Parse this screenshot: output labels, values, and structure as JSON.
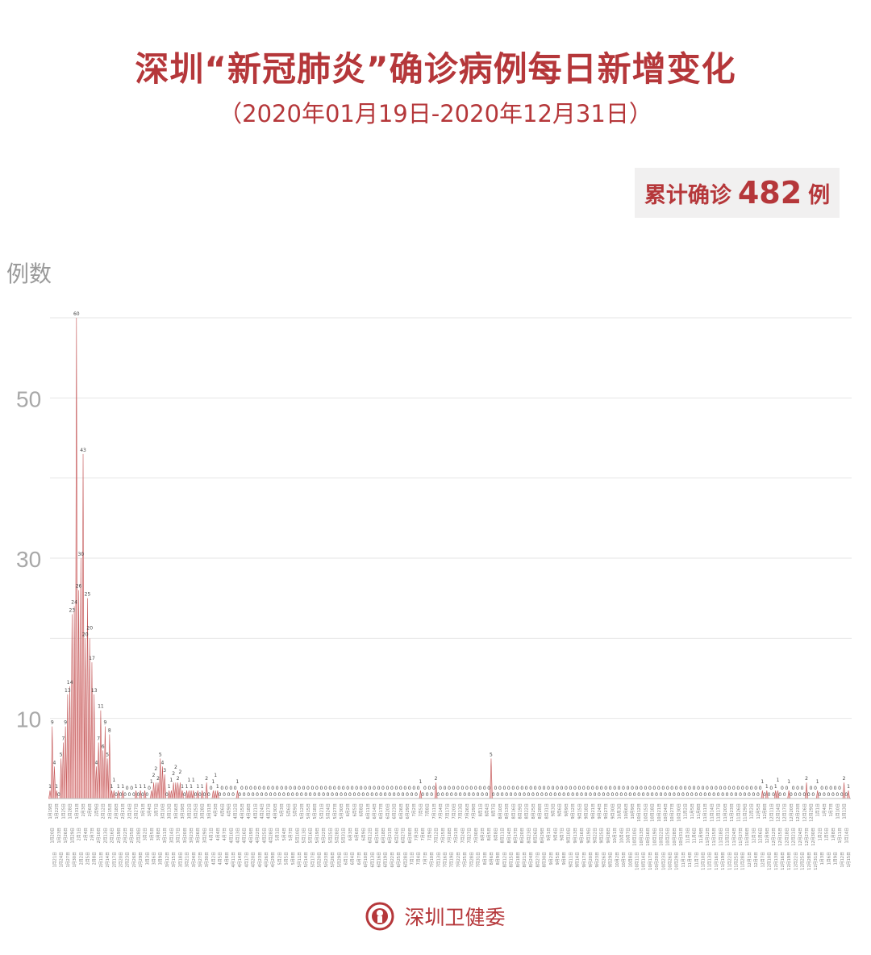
{
  "header": {
    "title": "深圳“新冠肺炎”确诊病例每日新增变化",
    "subtitle": "（2020年01月19日-2020年12月31日）",
    "total_label": "累计确诊",
    "total_value": "482",
    "total_unit": "例"
  },
  "footer": {
    "org": "深圳卫健委",
    "logo_icon": "health-commission-emblem-icon"
  },
  "colors": {
    "accent": "#b5373a",
    "fill": "#f0c2c2",
    "stroke": "#c4595a",
    "grid": "#e6e6e6"
  },
  "chart_data": {
    "type": "area",
    "title": "深圳“新冠肺炎”确诊病例每日新增变化",
    "ylabel": "例数",
    "xlabel": "",
    "x_start": "2020-01-19",
    "x_end": "2020-12-31",
    "ylim": [
      0,
      60
    ],
    "yticks": [
      10,
      30,
      50
    ],
    "gridlines": [
      10,
      20,
      30,
      40,
      50,
      60
    ],
    "grid": true,
    "values": [
      1,
      9,
      4,
      1,
      0,
      5,
      7,
      9,
      13,
      14,
      23,
      24,
      60,
      26,
      30,
      43,
      20,
      25,
      20,
      17,
      13,
      4,
      7,
      11,
      6,
      9,
      5,
      8,
      1,
      1,
      0,
      1,
      0,
      1,
      0,
      0,
      0,
      0,
      0,
      1,
      0,
      1,
      0,
      1,
      0,
      0,
      1,
      2,
      2,
      2,
      5,
      4,
      3,
      0,
      1,
      1,
      2,
      2,
      2,
      2,
      1,
      0,
      1,
      1,
      1,
      1,
      0,
      1,
      0,
      1,
      0,
      2,
      0,
      0,
      1,
      1,
      1,
      0,
      0,
      0,
      0,
      0,
      0,
      0,
      0,
      1,
      0,
      0,
      0,
      0,
      0,
      0,
      0,
      0,
      0,
      0,
      0,
      0,
      0,
      0,
      0,
      0,
      0,
      0,
      0,
      0,
      0,
      0,
      0,
      0,
      0,
      0,
      0,
      0,
      0,
      0,
      0,
      0,
      0,
      0,
      0,
      0,
      0,
      0,
      0,
      0,
      0,
      0,
      0,
      0,
      0,
      0,
      0,
      0,
      0,
      0,
      0,
      0,
      0,
      0,
      0,
      0,
      0,
      0,
      0,
      0,
      0,
      0,
      0,
      0,
      0,
      0,
      0,
      0,
      0,
      0,
      0,
      0,
      0,
      0,
      0,
      0,
      0,
      0,
      0,
      0,
      0,
      0,
      1,
      0,
      0,
      0,
      0,
      0,
      0,
      2,
      0,
      0,
      0,
      0,
      0,
      0,
      0,
      0,
      0,
      0,
      0,
      0,
      0,
      0,
      0,
      0,
      0,
      0,
      0,
      0,
      0,
      0,
      0,
      0,
      5,
      0,
      0,
      0,
      0,
      0,
      0,
      0,
      0,
      0,
      0,
      0,
      0,
      0,
      0,
      0,
      0,
      0,
      0,
      0,
      0,
      0,
      0,
      0,
      0,
      0,
      0,
      0,
      0,
      0,
      0,
      0,
      0,
      0,
      0,
      0,
      0,
      0,
      0,
      0,
      0,
      0,
      0,
      0,
      0,
      0,
      0,
      0,
      0,
      0,
      0,
      0,
      0,
      0,
      0,
      0,
      0,
      0,
      0,
      0,
      0,
      0,
      0,
      0,
      0,
      0,
      0,
      0,
      0,
      0,
      0,
      0,
      0,
      0,
      0,
      0,
      0,
      0,
      0,
      0,
      0,
      0,
      0,
      0,
      0,
      0,
      0,
      0,
      0,
      0,
      0,
      0,
      0,
      0,
      0,
      0,
      0,
      0,
      0,
      0,
      0,
      0,
      0,
      0,
      0,
      0,
      0,
      0,
      0,
      0,
      0,
      0,
      0,
      0,
      0,
      0,
      0,
      0,
      0,
      0,
      0,
      0,
      0,
      1,
      0,
      1,
      0,
      0,
      0,
      1,
      1,
      0,
      0,
      0,
      0,
      1,
      0,
      0,
      0,
      0,
      0,
      0,
      0,
      2,
      0,
      0,
      0,
      0,
      1,
      0,
      0,
      0,
      0,
      0,
      0,
      0,
      0,
      0,
      0,
      0,
      2,
      0,
      1
    ]
  }
}
